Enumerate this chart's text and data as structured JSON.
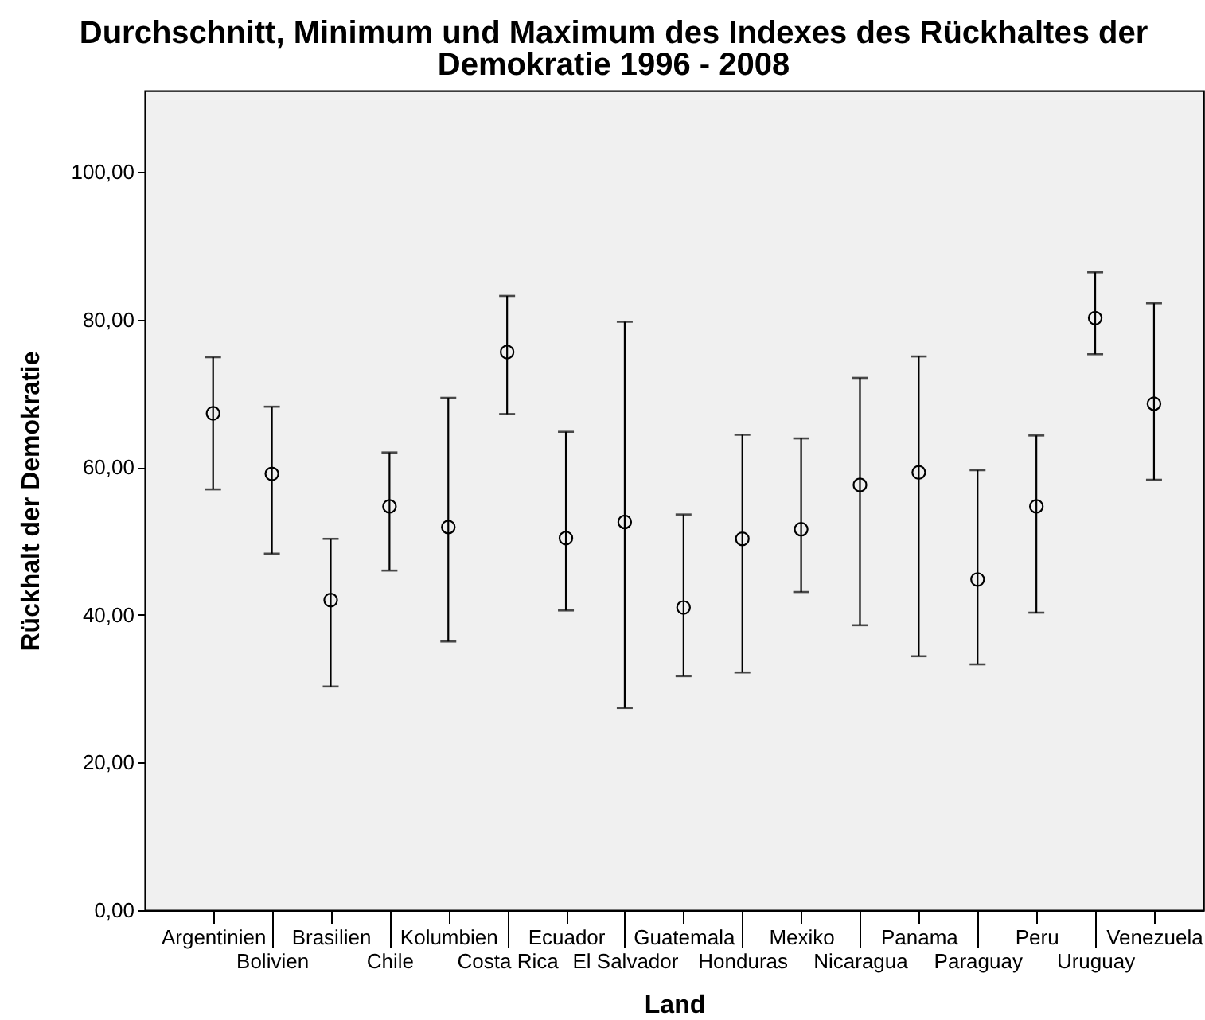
{
  "chart_data": {
    "type": "scatter",
    "title": "Durchschnitt, Minimum und Maximum des Indexes des Rückhaltes der Demokratie 1996 - 2008",
    "xlabel": "Land",
    "ylabel": "Rückhalt der Demokratie",
    "categories": [
      "Argentinien",
      "Bolivien",
      "Brasilien",
      "Chile",
      "Kolumbien",
      "Costa Rica",
      "Ecuador",
      "El Salvador",
      "Guatemala",
      "Honduras",
      "Mexiko",
      "Nicaragua",
      "Panama",
      "Paraguay",
      "Peru",
      "Uruguay",
      "Venezuela"
    ],
    "values": [
      67.3,
      59.1,
      42.0,
      54.7,
      51.9,
      75.6,
      50.4,
      52.6,
      41.0,
      50.3,
      51.6,
      57.6,
      59.3,
      44.8,
      54.7,
      80.2,
      68.6
    ],
    "errors": [
      [
        57.0,
        74.9
      ],
      [
        48.3,
        68.2
      ],
      [
        30.3,
        50.3
      ],
      [
        46.0,
        62.0
      ],
      [
        36.4,
        69.4
      ],
      [
        67.2,
        83.2
      ],
      [
        40.6,
        64.8
      ],
      [
        27.4,
        79.7
      ],
      [
        31.7,
        53.6
      ],
      [
        32.2,
        64.4
      ],
      [
        43.1,
        63.9
      ],
      [
        38.6,
        72.1
      ],
      [
        34.4,
        75.0
      ],
      [
        33.3,
        59.6
      ],
      [
        40.3,
        64.3
      ],
      [
        75.3,
        86.4
      ],
      [
        58.3,
        82.2
      ]
    ],
    "color": "#000000",
    "marker": "circle",
    "ylim": [
      0,
      111
    ],
    "yticks": [
      {
        "value": 0,
        "label": "0,00"
      },
      {
        "value": 20,
        "label": "20,00"
      },
      {
        "value": 40,
        "label": "40,00"
      },
      {
        "value": 60,
        "label": "60,00"
      },
      {
        "value": 80,
        "label": "80,00"
      },
      {
        "value": 100,
        "label": "100,00"
      }
    ]
  }
}
